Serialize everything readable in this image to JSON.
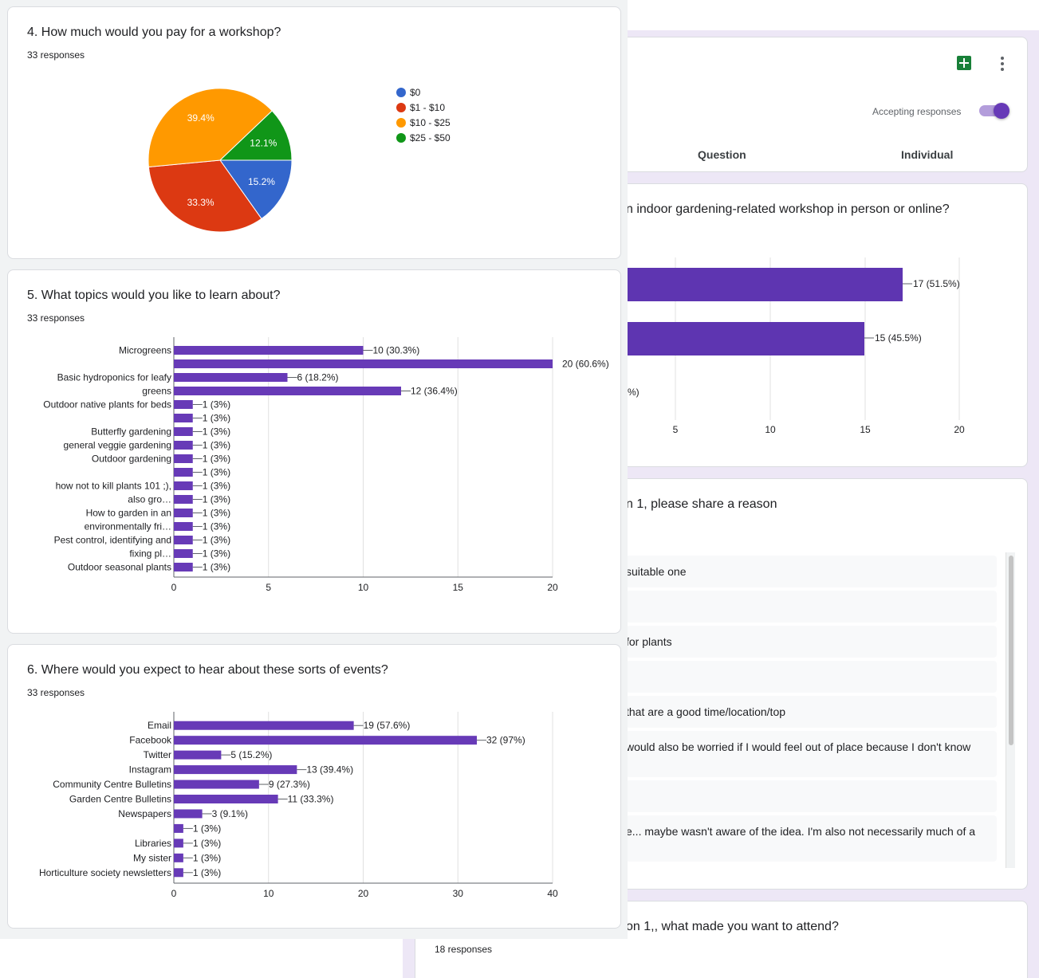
{
  "header_card": {
    "accepting_label": "Accepting responses",
    "tabs": [
      "Question",
      "Individual"
    ],
    "icons": [
      "sheets-icon",
      "more-vert-icon"
    ]
  },
  "q3": {
    "title_partial": "n indoor gardening-related workshop in person or online?",
    "bars": [
      {
        "value": 17,
        "label": "17 (51.5%)"
      },
      {
        "value": 15,
        "label": "15 (45.5%)"
      },
      {
        "label": "%)"
      }
    ],
    "ticks": [
      "5",
      "10",
      "15",
      "20"
    ]
  },
  "q_reason": {
    "title_partial": "n 1, please share a reason",
    "rows": [
      "suitable one",
      "",
      "for plants",
      "",
      "that are a good time/location/top",
      "would also be worried if I would feel out of place because I don't know",
      "",
      "e... maybe wasn't aware of the idea. I'm also not necessarily much of a"
    ]
  },
  "q_attend": {
    "title_partial": "on 1,, what made you want to attend?",
    "responses": "18 responses"
  },
  "q4": {
    "title": "4. How much would you pay for a workshop?",
    "responses": "33 responses"
  },
  "q5": {
    "title": "5. What topics would you like to learn about?",
    "responses": "33 responses"
  },
  "q6": {
    "title": "6. Where would you expect to hear about these sorts of events?",
    "responses": "33 responses"
  },
  "chart_data": [
    {
      "type": "pie",
      "title": "4. How much would you pay for a workshop?",
      "legend_position": "right",
      "slices": [
        {
          "label": "$0",
          "percent": 15.2,
          "color": "#3366cc"
        },
        {
          "label": "$1 - $10",
          "percent": 33.3,
          "color": "#dc3912"
        },
        {
          "label": "$10 - $25",
          "percent": 39.4,
          "color": "#ff9900"
        },
        {
          "label": "$25 - $50",
          "percent": 12.1,
          "color": "#109618"
        }
      ]
    },
    {
      "type": "bar",
      "orientation": "horizontal",
      "title": "5. What topics would you like to learn about?",
      "color": "#673ab7",
      "xlim": [
        0,
        20
      ],
      "xticks": [
        "0",
        "5",
        "10",
        "15",
        "20"
      ],
      "bars": [
        {
          "category": [
            "Microgreens"
          ],
          "value": 10,
          "label": "10 (30.3%)"
        },
        {
          "category": [],
          "value": 20,
          "label": "20 (60.6%)"
        },
        {
          "category": [
            "Basic hydroponics for leafy",
            "greens"
          ],
          "value": 6,
          "label": "6 (18.2%)"
        },
        {
          "category": [],
          "value": 12,
          "label": "12 (36.4%)"
        },
        {
          "category": [
            "Outdoor native plants for beds"
          ],
          "value": 1,
          "label": "1 (3%)"
        },
        {
          "category": [],
          "value": 1,
          "label": "1 (3%)"
        },
        {
          "category": [
            "Butterfly gardening"
          ],
          "value": 1,
          "label": "1 (3%)"
        },
        {
          "category": [
            "general veggie gardening"
          ],
          "value": 1,
          "label": "1 (3%)"
        },
        {
          "category": [
            "Outdoor gardening"
          ],
          "value": 1,
          "label": "1 (3%)"
        },
        {
          "category": [],
          "value": 1,
          "label": "1 (3%)"
        },
        {
          "category": [
            "how not to kill plants 101 ;),",
            "also gro…"
          ],
          "value": 1,
          "label": "1 (3%)"
        },
        {
          "category": [],
          "value": 1,
          "label": "1 (3%)"
        },
        {
          "category": [
            "How to garden in an",
            "environmentally fri…"
          ],
          "value": 1,
          "label": "1 (3%)"
        },
        {
          "category": [],
          "value": 1,
          "label": "1 (3%)"
        },
        {
          "category": [
            "Pest control, identifying and",
            "fixing pl…"
          ],
          "value": 1,
          "label": "1 (3%)"
        },
        {
          "category": [],
          "value": 1,
          "label": "1 (3%)"
        },
        {
          "category": [
            "Outdoor seasonal plants"
          ],
          "value": 1,
          "label": "1 (3%)"
        }
      ]
    },
    {
      "type": "bar",
      "orientation": "horizontal",
      "title": "6. Where would you expect to hear about these sorts of events?",
      "color": "#673ab7",
      "xlim": [
        0,
        40
      ],
      "xticks": [
        "0",
        "10",
        "20",
        "30",
        "40"
      ],
      "bars": [
        {
          "category": [
            "Email"
          ],
          "value": 19,
          "label": "19 (57.6%)"
        },
        {
          "category": [
            "Facebook"
          ],
          "value": 32,
          "label": "32 (97%)"
        },
        {
          "category": [
            "Twitter"
          ],
          "value": 5,
          "label": "5 (15.2%)"
        },
        {
          "category": [
            "Instagram"
          ],
          "value": 13,
          "label": "13 (39.4%)"
        },
        {
          "category": [
            "Community Centre Bulletins"
          ],
          "value": 9,
          "label": "9 (27.3%)"
        },
        {
          "category": [
            "Garden Centre Bulletins"
          ],
          "value": 11,
          "label": "11 (33.3%)"
        },
        {
          "category": [
            "Newspapers"
          ],
          "value": 3,
          "label": "3 (9.1%)"
        },
        {
          "category": [],
          "value": 1,
          "label": "1 (3%)"
        },
        {
          "category": [
            "Libraries"
          ],
          "value": 1,
          "label": "1 (3%)"
        },
        {
          "category": [
            "My sister"
          ],
          "value": 1,
          "label": "1 (3%)"
        },
        {
          "category": [
            "Horticulture society newsletters"
          ],
          "value": 1,
          "label": "1 (3%)"
        }
      ]
    }
  ]
}
